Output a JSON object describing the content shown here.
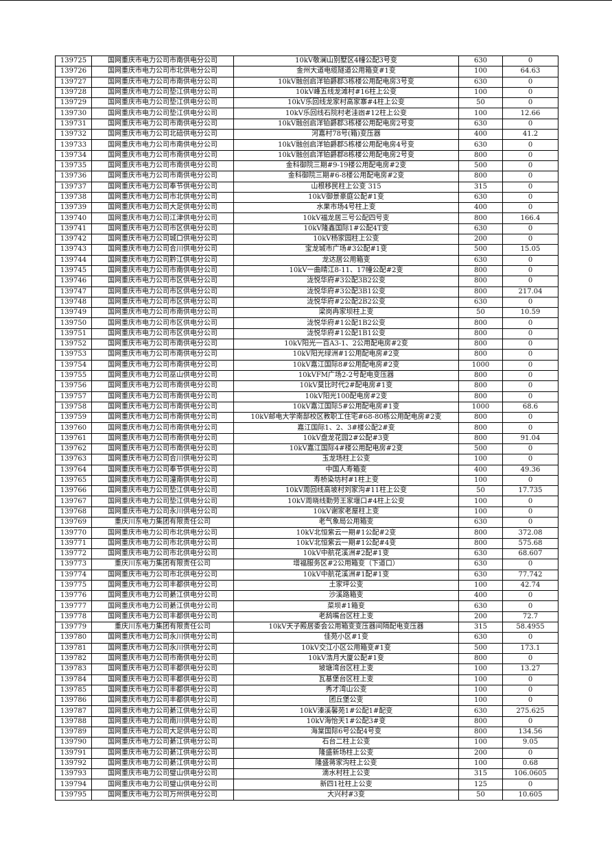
{
  "rows": [
    [
      "139725",
      "国网重庆市电力公司市南供电分公司",
      "10kV敬澜山别墅区4幢公配3号变",
      "630",
      "0"
    ],
    [
      "139726",
      "国网重庆市电力公司市北供电分公司",
      "金州大道电缆隧道公用箱变#1变",
      "100",
      "64.63"
    ],
    [
      "139727",
      "国网重庆市电力公司市南供电分公司",
      "10kV融创启洋铂爵郡3栋楼公用配电房3号变",
      "630",
      "0"
    ],
    [
      "139728",
      "国网重庆市电力公司垫江供电分公司",
      "10kV峰五线龙滩村#16柱上公变",
      "100",
      "0"
    ],
    [
      "139729",
      "国网重庆市电力公司垫江供电分公司",
      "10kV乐回线龙家村高家寨#4柱上公变",
      "50",
      "0"
    ],
    [
      "139730",
      "国网重庆市电力公司垫江供电分公司",
      "10kV乐回线石院村老洼凼#12柱上公变",
      "100",
      "12.66"
    ],
    [
      "139731",
      "国网重庆市电力公司市南供电分公司",
      "10kV融创启洋铂爵郡3栋楼公用配电房2号变",
      "630",
      "0"
    ],
    [
      "139732",
      "国网重庆市电力公司北碚供电分公司",
      "河嘉村78号(箱)变压器",
      "400",
      "41.2"
    ],
    [
      "139733",
      "国网重庆市电力公司市南供电分公司",
      "10kV融创启洋铂爵郡5栋楼公用配电房4号变",
      "630",
      "0"
    ],
    [
      "139734",
      "国网重庆市电力公司市南供电分公司",
      "10kV融创启洋铂爵郡8栋楼公用配电房2号变",
      "800",
      "0"
    ],
    [
      "139735",
      "国网重庆市电力公司市南供电分公司",
      "金科御院三期#9-19楼公用配电房#2变",
      "500",
      "0"
    ],
    [
      "139736",
      "国网重庆市电力公司市南供电分公司",
      "金科御院三期#6-8楼公用配电房#2变",
      "800",
      "0"
    ],
    [
      "139737",
      "国网重庆市电力公司奉节供电分公司",
      "山根移民柱上公变 315",
      "315",
      "0"
    ],
    [
      "139738",
      "国网重庆市电力公司市北供电分公司",
      "10kV御景豪庭公配#1变",
      "630",
      "0"
    ],
    [
      "139739",
      "国网重庆市电力公司大足供电分公司",
      "水果市场4号柱上变",
      "400",
      "0"
    ],
    [
      "139740",
      "国网重庆市电力公司江津供电分公司",
      "10kV福龙居三号公配四号变",
      "800",
      "166.4"
    ],
    [
      "139741",
      "国网重庆市电力公司市区供电分公司",
      "10kV隆鑫国际1#公配4T变",
      "630",
      "0"
    ],
    [
      "139742",
      "国网重庆市电力公司城口供电分公司",
      "10kV杨家园柱上公变",
      "200",
      "0"
    ],
    [
      "139743",
      "国网重庆市电力公司合川供电分公司",
      "宝龙城市广场#3公配#1变",
      "500",
      "15.05"
    ],
    [
      "139744",
      "国网重庆市电力公司黔江供电分公司",
      "龙达居公用箱变",
      "630",
      "0"
    ],
    [
      "139745",
      "国网重庆市电力公司市南供电分公司",
      "10kV一曲晴江8-11、17幢公配#2变",
      "800",
      "0"
    ],
    [
      "139746",
      "国网重庆市电力公司市区供电分公司",
      "泷悦华府#3公配3B2公变",
      "800",
      "0"
    ],
    [
      "139747",
      "国网重庆市电力公司市区供电分公司",
      "泷悦华府#3公配3B1公变",
      "800",
      "217.04"
    ],
    [
      "139748",
      "国网重庆市电力公司市区供电分公司",
      "泷悦华府#2公配2B2公变",
      "630",
      "0"
    ],
    [
      "139749",
      "国网重庆市电力公司市南供电分公司",
      "梁岗冉家坝柱上变",
      "50",
      "10.59"
    ],
    [
      "139750",
      "国网重庆市电力公司市区供电分公司",
      "泷悦华府#1公配1B2公变",
      "800",
      "0"
    ],
    [
      "139751",
      "国网重庆市电力公司市区供电分公司",
      "泷悦华府#1公配1B1公变",
      "800",
      "0"
    ],
    [
      "139752",
      "国网重庆市电力公司市南供电分公司",
      "10kV阳光一百A3-1、2公用配电房#2变",
      "800",
      "0"
    ],
    [
      "139753",
      "国网重庆市电力公司市南供电分公司",
      "10kV阳光绿洲#1公用配电房#2变",
      "800",
      "0"
    ],
    [
      "139754",
      "国网重庆市电力公司市南供电分公司",
      "10kV嘉江国际8#公用配电房#2变",
      "1000",
      "0"
    ],
    [
      "139755",
      "国网重庆市电力公司巫山供电分公司",
      "10kVFM广场2-2号配电变压器",
      "800",
      "0"
    ],
    [
      "139756",
      "国网重庆市电力公司市南供电分公司",
      "10kV莫比时代2#配电房#1变",
      "800",
      "0"
    ],
    [
      "139757",
      "国网重庆市电力公司市南供电分公司",
      "10kV阳光100配电房#2变",
      "800",
      "0"
    ],
    [
      "139758",
      "国网重庆市电力公司市南供电分公司",
      "10kV嘉江国际5#公用配电房#1变",
      "1000",
      "68.6"
    ],
    [
      "139759",
      "国网重庆市电力公司市南供电分公司",
      "10kV邮电大学南部校区教职工住宅#68-80栋公用配电房#2变",
      "800",
      "0"
    ],
    [
      "139760",
      "国网重庆市电力公司市南供电分公司",
      "嘉江国际1、2、3#楼公配2#变",
      "800",
      "0"
    ],
    [
      "139761",
      "国网重庆市电力公司市南供电分公司",
      "10kV盘龙花园2#公配#3变",
      "800",
      "91.04"
    ],
    [
      "139762",
      "国网重庆市电力公司市南供电分公司",
      "10kV嘉江国际4#楼公用配电房#2变",
      "500",
      "0"
    ],
    [
      "139763",
      "国网重庆市电力公司合川供电分公司",
      "玉龙场柱上公变",
      "100",
      "0"
    ],
    [
      "139764",
      "国网重庆市电力公司奉节供电分公司",
      "中国人寿箱变",
      "400",
      "49.36"
    ],
    [
      "139765",
      "国网重庆市电力公司潼南供电分公司",
      "寿桥染坊村#1柱上变",
      "100",
      "0"
    ],
    [
      "139766",
      "国网重庆市电力公司垫江供电分公司",
      "10kV周回线高坡村刘家沟#11柱上公变",
      "50",
      "17.735"
    ],
    [
      "139767",
      "国网重庆市电力公司垫江供电分公司",
      "10kV周晓线勤劳王家堰口#4柱上公变",
      "100",
      "0"
    ],
    [
      "139768",
      "国网重庆市电力公司永川供电分公司",
      "10kV谢家老屋柱上变",
      "100",
      "0"
    ],
    [
      "139769",
      "重庆川东电力集团有限责任公司",
      "老气象局公用箱变",
      "630",
      "0"
    ],
    [
      "139770",
      "国网重庆市电力公司市北供电分公司",
      "10kV北恒紫云一期#1公配#2变",
      "800",
      "372.08"
    ],
    [
      "139771",
      "国网重庆市电力公司市北供电分公司",
      "10kV北恒紫云一期#1公配#4变",
      "800",
      "575.68"
    ],
    [
      "139772",
      "国网重庆市电力公司市北供电分公司",
      "10kV中航花溪洲#2配#1变",
      "630",
      "68.607"
    ],
    [
      "139773",
      "重庆川东电力集团有限责任公司",
      "增福服务区#2公用箱变（下道口）",
      "630",
      "0"
    ],
    [
      "139774",
      "国网重庆市电力公司市北供电分公司",
      "10kV中航花溪洲#1配#1变",
      "630",
      "77.742"
    ],
    [
      "139775",
      "国网重庆市电力公司丰都供电分公司",
      "土家坪公变",
      "100",
      "42.74"
    ],
    [
      "139776",
      "国网重庆市电力公司綦江供电分公司",
      "沙溪路箱变",
      "400",
      "0"
    ],
    [
      "139777",
      "国网重庆市电力公司綦江供电分公司",
      "菜坝#1箱变",
      "630",
      "0"
    ],
    [
      "139778",
      "国网重庆市电力公司丰都供电分公司",
      "老鸹嘴台区柱上变",
      "200",
      "72.7"
    ],
    [
      "139779",
      "重庆川东电力集团有限责任公司",
      "10kV天子殿居委会公用箱变变压器间隔配电变压器",
      "315",
      "58.4955"
    ],
    [
      "139780",
      "国网重庆市电力公司永川供电分公司",
      "佳苑小区#1变",
      "630",
      "0"
    ],
    [
      "139781",
      "国网重庆市电力公司永川供电分公司",
      "10kV交江小区公用箱变#1变",
      "500",
      "173.1"
    ],
    [
      "139782",
      "国网重庆市电力公司市南供电分公司",
      "10kV浩月大厦公配#1变",
      "800",
      "0"
    ],
    [
      "139783",
      "国网重庆市电力公司丰都供电分公司",
      "坡塘湾台区柱上变",
      "100",
      "13.27"
    ],
    [
      "139784",
      "国网重庆市电力公司丰都供电分公司",
      "瓦基堡台区柱上变",
      "100",
      "0"
    ],
    [
      "139785",
      "国网重庆市电力公司丰都供电分公司",
      "秀才湾山公变",
      "100",
      "0"
    ],
    [
      "139786",
      "国网重庆市电力公司丰都供电分公司",
      "团丘堡公变",
      "100",
      "0"
    ],
    [
      "139787",
      "国网重庆市电力公司綦江供电分公司",
      "10kV溱溪馨苑1#公配1#配变",
      "630",
      "275.625"
    ],
    [
      "139788",
      "国网重庆市电力公司南川供电分公司",
      "10kV海怡天1#公配3#变",
      "800",
      "0"
    ],
    [
      "139789",
      "国网重庆市电力公司大足供电分公司",
      "海棠国际6号公配4号变",
      "800",
      "134.56"
    ],
    [
      "139790",
      "国网重庆市电力公司綦江供电分公司",
      "石台二柱上公变",
      "100",
      "9.05"
    ],
    [
      "139791",
      "国网重庆市电力公司綦江供电分公司",
      "隆盛新场柱上公变",
      "200",
      "0"
    ],
    [
      "139792",
      "国网重庆市电力公司綦江供电分公司",
      "隆盛蒋家沟柱上公变",
      "100",
      "0.68"
    ],
    [
      "139793",
      "国网重庆市电力公司璧山供电分公司",
      "滴水村柱上公变",
      "315",
      "106.0605"
    ],
    [
      "139794",
      "国网重庆市电力公司璧山供电分公司",
      "新四1社柱上公变",
      "125",
      "0"
    ],
    [
      "139795",
      "国网重庆市电力公司万州供电分公司",
      "大兴村#3变",
      "50",
      "10.605"
    ]
  ]
}
